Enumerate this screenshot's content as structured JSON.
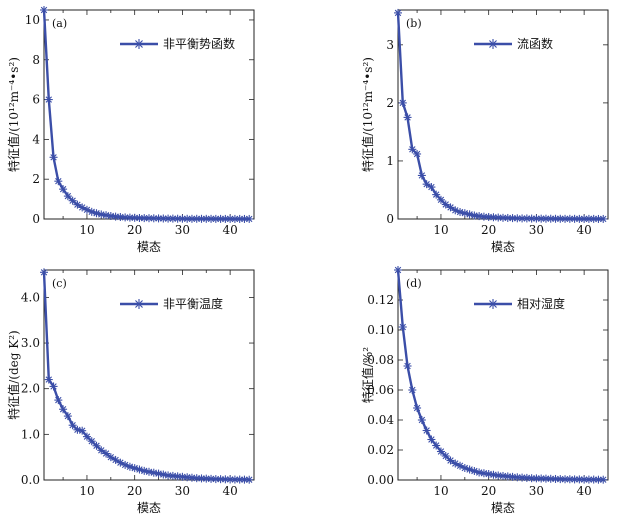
{
  "figure": {
    "line_color": "#3b4ea8",
    "marker": "asterisk",
    "mode_count": 44
  },
  "chart_data": [
    {
      "type": "line",
      "panel_tag": "(a)",
      "xlabel": "模态",
      "ylabel": "特征值/(10¹²m⁻⁴•s²)",
      "xlim": [
        1,
        45
      ],
      "ylim": [
        0,
        10.5
      ],
      "xticks": [
        10,
        20,
        30,
        40
      ],
      "yticks": [
        0,
        2,
        4,
        6,
        8,
        10
      ],
      "yticklabels": [
        "0",
        "2",
        "4",
        "6",
        "8",
        "10"
      ],
      "legend_position": "top-right",
      "series": [
        {
          "name": "非平衡势函数",
          "x": [
            1,
            2,
            3,
            4,
            5,
            6,
            7,
            8,
            9,
            10,
            11,
            12,
            13,
            14,
            15,
            16,
            17,
            18,
            19,
            20,
            21,
            22,
            23,
            24,
            25,
            26,
            27,
            28,
            29,
            30,
            31,
            32,
            33,
            34,
            35,
            36,
            37,
            38,
            39,
            40,
            41,
            42,
            43,
            44
          ],
          "values": [
            10.5,
            6.0,
            3.1,
            1.9,
            1.5,
            1.15,
            0.92,
            0.72,
            0.58,
            0.46,
            0.36,
            0.29,
            0.23,
            0.19,
            0.15,
            0.12,
            0.1,
            0.08,
            0.07,
            0.06,
            0.05,
            0.045,
            0.04,
            0.035,
            0.03,
            0.025,
            0.02,
            0.02,
            0.015,
            0.015,
            0.01,
            0.01,
            0.01,
            0.01,
            0.008,
            0.008,
            0.006,
            0.006,
            0.005,
            0.005,
            0.004,
            0.004,
            0.003,
            0.003
          ]
        }
      ]
    },
    {
      "type": "line",
      "panel_tag": "(b)",
      "xlabel": "模态",
      "ylabel": "特征值/(10¹²m⁻⁴•s²)",
      "xlim": [
        1,
        45
      ],
      "ylim": [
        0,
        3.6
      ],
      "xticks": [
        10,
        20,
        30,
        40
      ],
      "yticks": [
        0,
        1,
        2,
        3
      ],
      "yticklabels": [
        "0",
        "1",
        "2",
        "3"
      ],
      "legend_position": "top-right",
      "series": [
        {
          "name": "流函数",
          "x": [
            1,
            2,
            3,
            4,
            5,
            6,
            7,
            8,
            9,
            10,
            11,
            12,
            13,
            14,
            15,
            16,
            17,
            18,
            19,
            20,
            21,
            22,
            23,
            24,
            25,
            26,
            27,
            28,
            29,
            30,
            31,
            32,
            33,
            34,
            35,
            36,
            37,
            38,
            39,
            40,
            41,
            42,
            43,
            44
          ],
          "values": [
            3.55,
            2.0,
            1.75,
            1.2,
            1.12,
            0.75,
            0.6,
            0.55,
            0.42,
            0.33,
            0.25,
            0.2,
            0.15,
            0.12,
            0.1,
            0.08,
            0.06,
            0.05,
            0.04,
            0.035,
            0.03,
            0.025,
            0.02,
            0.018,
            0.015,
            0.012,
            0.01,
            0.01,
            0.008,
            0.007,
            0.006,
            0.005,
            0.005,
            0.004,
            0.004,
            0.003,
            0.003,
            0.003,
            0.002,
            0.002,
            0.002,
            0.002,
            0.001,
            0.001
          ]
        }
      ]
    },
    {
      "type": "line",
      "panel_tag": "(c)",
      "xlabel": "模态",
      "ylabel": "特征值/(deg K²)",
      "xlim": [
        1,
        45
      ],
      "ylim": [
        0,
        4.6
      ],
      "xticks": [
        10,
        20,
        30,
        40
      ],
      "yticks": [
        0,
        1,
        2,
        3,
        4
      ],
      "yticklabels": [
        "0.0",
        "1.0",
        "2.0",
        "3.0",
        "4.0"
      ],
      "legend_position": "top-right",
      "series": [
        {
          "name": "非平衡温度",
          "x": [
            1,
            2,
            3,
            4,
            5,
            6,
            7,
            8,
            9,
            10,
            11,
            12,
            13,
            14,
            15,
            16,
            17,
            18,
            19,
            20,
            21,
            22,
            23,
            24,
            25,
            26,
            27,
            28,
            29,
            30,
            31,
            32,
            33,
            34,
            35,
            36,
            37,
            38,
            39,
            40,
            41,
            42,
            43,
            44
          ],
          "values": [
            4.55,
            2.2,
            2.05,
            1.75,
            1.55,
            1.4,
            1.2,
            1.1,
            1.08,
            0.95,
            0.85,
            0.75,
            0.65,
            0.58,
            0.5,
            0.44,
            0.38,
            0.33,
            0.29,
            0.26,
            0.23,
            0.2,
            0.18,
            0.16,
            0.14,
            0.12,
            0.1,
            0.09,
            0.08,
            0.07,
            0.06,
            0.05,
            0.04,
            0.035,
            0.03,
            0.025,
            0.02,
            0.018,
            0.015,
            0.012,
            0.01,
            0.01,
            0.008,
            0.006
          ]
        }
      ]
    },
    {
      "type": "line",
      "panel_tag": "(d)",
      "xlabel": "模态",
      "ylabel": "特征值/%²",
      "xlim": [
        1,
        45
      ],
      "ylim": [
        0,
        0.14
      ],
      "xticks": [
        10,
        20,
        30,
        40
      ],
      "yticks": [
        0,
        0.02,
        0.04,
        0.06,
        0.08,
        0.1,
        0.12
      ],
      "yticklabels": [
        "0.00",
        "0.02",
        "0.04",
        "0.06",
        "0.08",
        "0.10",
        "0.12"
      ],
      "legend_position": "top-right",
      "series": [
        {
          "name": "相对湿度",
          "x": [
            1,
            2,
            3,
            4,
            5,
            6,
            7,
            8,
            9,
            10,
            11,
            12,
            13,
            14,
            15,
            16,
            17,
            18,
            19,
            20,
            21,
            22,
            23,
            24,
            25,
            26,
            27,
            28,
            29,
            30,
            31,
            32,
            33,
            34,
            35,
            36,
            37,
            38,
            39,
            40,
            41,
            42,
            43,
            44
          ],
          "values": [
            0.14,
            0.102,
            0.076,
            0.06,
            0.048,
            0.04,
            0.033,
            0.027,
            0.023,
            0.019,
            0.016,
            0.013,
            0.011,
            0.0095,
            0.008,
            0.007,
            0.006,
            0.005,
            0.0045,
            0.004,
            0.0035,
            0.003,
            0.0027,
            0.0024,
            0.0021,
            0.0018,
            0.0016,
            0.0014,
            0.0012,
            0.0011,
            0.001,
            0.0009,
            0.0008,
            0.0007,
            0.0006,
            0.0005,
            0.0005,
            0.0004,
            0.0004,
            0.0003,
            0.0003,
            0.0003,
            0.0002,
            0.0002
          ]
        }
      ]
    }
  ]
}
